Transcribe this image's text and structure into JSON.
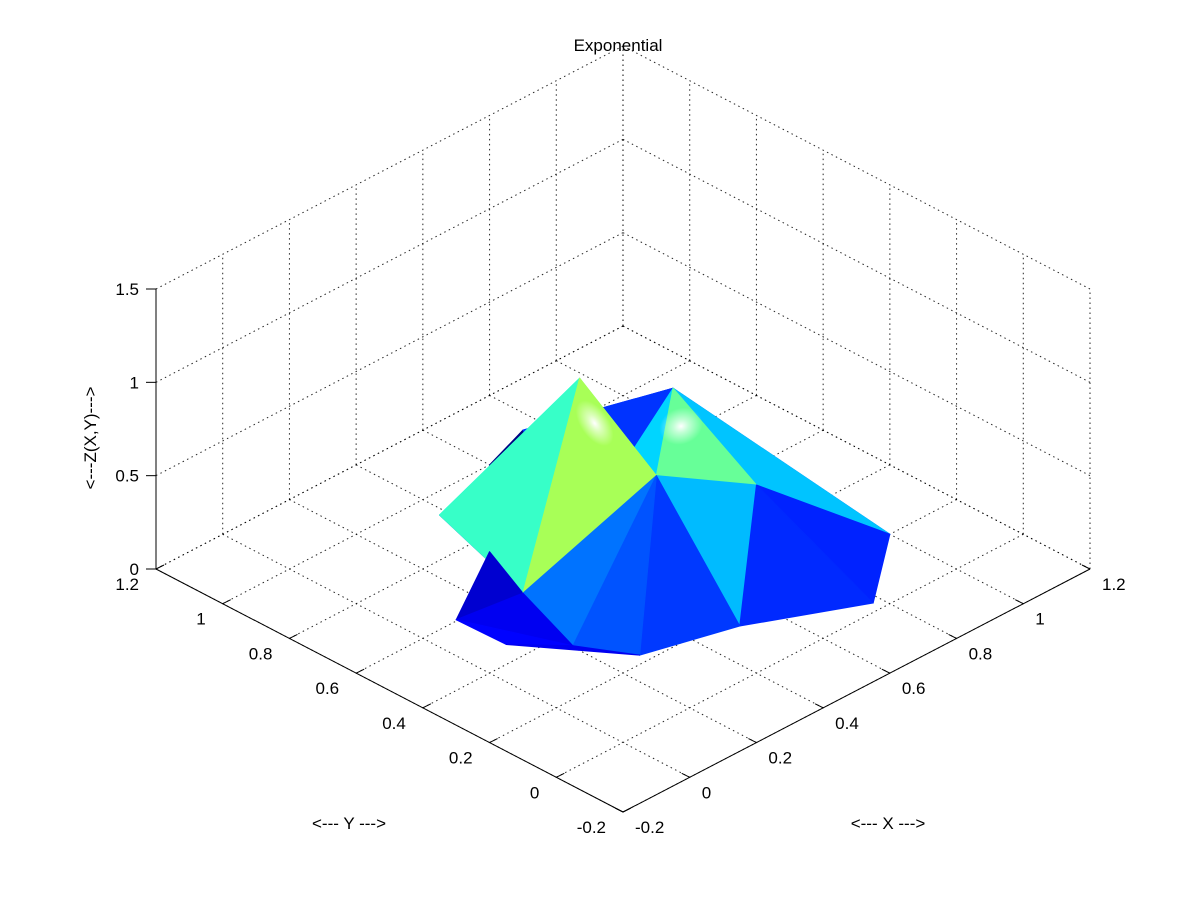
{
  "chart_data": {
    "type": "surface3d",
    "title": "Exponential",
    "xlabel": "<--- X --->",
    "ylabel": "<--- Y --->",
    "zlabel": "<---Z(X,Y)--->",
    "xlim": [
      -0.2,
      1.2
    ],
    "ylim": [
      -0.2,
      1.2
    ],
    "zlim": [
      0,
      1.5
    ],
    "x_ticks": [
      "-0.2",
      "0",
      "0.2",
      "0.4",
      "0.6",
      "0.8",
      "1",
      "1.2"
    ],
    "y_ticks": [
      "-0.2",
      "0",
      "0.2",
      "0.4",
      "0.6",
      "0.8",
      "1",
      "1.2"
    ],
    "z_ticks": [
      "0",
      "0.5",
      "1",
      "1.5"
    ],
    "grid": true,
    "colormap": "jet",
    "surface_points": {
      "x": [
        1.0,
        0.75,
        0.5,
        0.25,
        0.0,
        0.2,
        0.35,
        0.5,
        0.6,
        0.75,
        0.9,
        0.15,
        0.05,
        0.6,
        0.55,
        0.8,
        1.05,
        0.7,
        0.42,
        0.3
      ],
      "y": [
        0.2,
        0.0,
        0.15,
        0.2,
        0.35,
        0.5,
        0.75,
        0.9,
        1.0,
        1.05,
        1.0,
        0.3,
        0.55,
        0.7,
        0.45,
        0.65,
        0.9,
        0.3,
        0.55,
        0.85
      ],
      "z": [
        0.0,
        0.05,
        0.02,
        0.05,
        0.2,
        0.15,
        0.0,
        0.0,
        0.0,
        0.0,
        0.0,
        0.1,
        0.1,
        0.0,
        0.5,
        0.55,
        0.0,
        0.45,
        1.05,
        0.15
      ],
      "peaks": [
        {
          "x": 0.42,
          "y": 0.55,
          "z": 1.05
        },
        {
          "x": 0.8,
          "y": 0.65,
          "z": 0.55
        }
      ]
    }
  }
}
